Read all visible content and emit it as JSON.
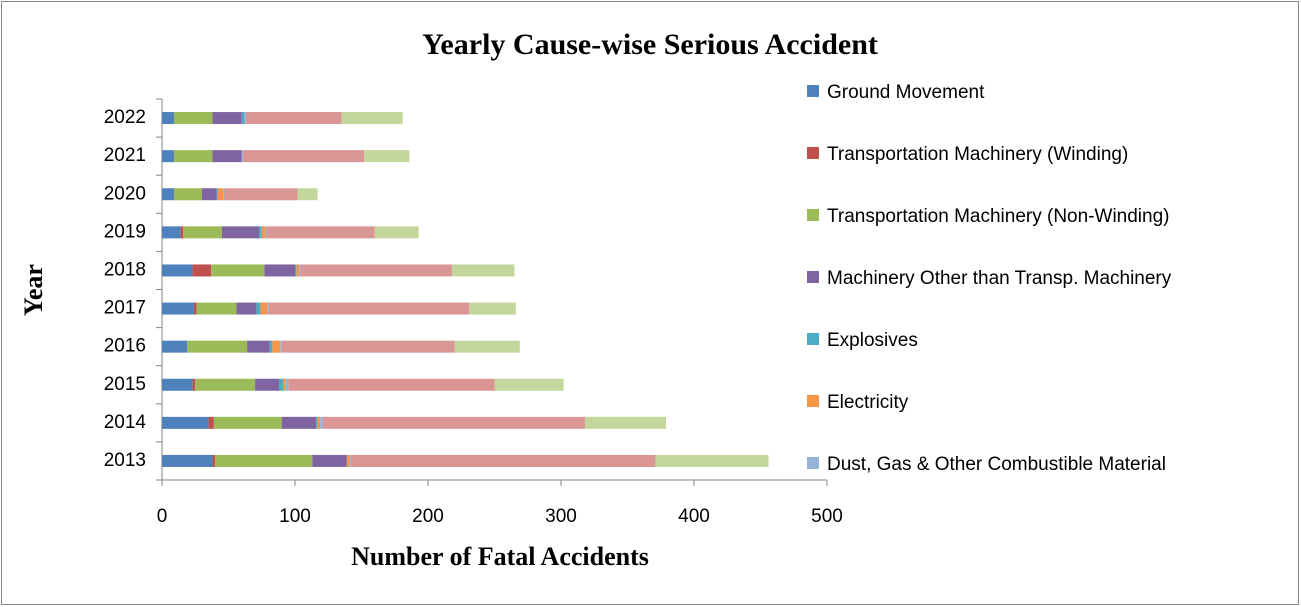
{
  "chart_data": {
    "type": "bar",
    "orientation": "horizontal",
    "stacked": true,
    "title": "Yearly Cause-wise Serious  Accident",
    "x_label": "Number of Fatal Accidents",
    "y_label": "Year",
    "categories": [
      "2013",
      "2014",
      "2015",
      "2016",
      "2017",
      "2018",
      "2019",
      "2020",
      "2021",
      "2022"
    ],
    "xlim": [
      0,
      500
    ],
    "xticks": [
      0,
      100,
      200,
      300,
      400,
      500
    ],
    "grid": false,
    "legend": "right",
    "series": [
      {
        "name": "Ground Movement",
        "color": "#4f81bd",
        "values": [
          38,
          35,
          23,
          19,
          24,
          23,
          14,
          9,
          9,
          9
        ]
      },
      {
        "name": "Transportation Machinery (Winding)",
        "color": "#c0504d",
        "values": [
          2,
          4,
          2,
          0,
          2,
          14,
          2,
          0,
          0,
          0
        ]
      },
      {
        "name": "Transportation Machinery (Non-Winding)",
        "color": "#9bbb59",
        "values": [
          73,
          51,
          45,
          45,
          30,
          40,
          29,
          21,
          29,
          29
        ]
      },
      {
        "name": "Machinery Other than Transp. Machinery",
        "color": "#8064a2",
        "values": [
          26,
          26,
          18,
          17,
          15,
          23,
          28,
          11,
          22,
          22
        ]
      },
      {
        "name": "Explosives",
        "color": "#4bacc6",
        "values": [
          0,
          1,
          3,
          2,
          3,
          1,
          2,
          1,
          0,
          2
        ]
      },
      {
        "name": "Electricity",
        "color": "#f79646",
        "values": [
          2,
          2,
          2,
          6,
          5,
          2,
          3,
          4,
          0,
          0
        ]
      },
      {
        "name": "Dust, Gas & Other Combustible Material",
        "color": "#95b3d7",
        "values": [
          1,
          2,
          2,
          1,
          1,
          1,
          1,
          1,
          1,
          1
        ]
      },
      {
        "color": "#d99694",
        "values": [
          229,
          197,
          155,
          130,
          151,
          114,
          81,
          55,
          91,
          72
        ]
      },
      {
        "color": "#c3d69b",
        "values": [
          85,
          61,
          52,
          49,
          35,
          47,
          33,
          15,
          34,
          46
        ]
      }
    ]
  }
}
